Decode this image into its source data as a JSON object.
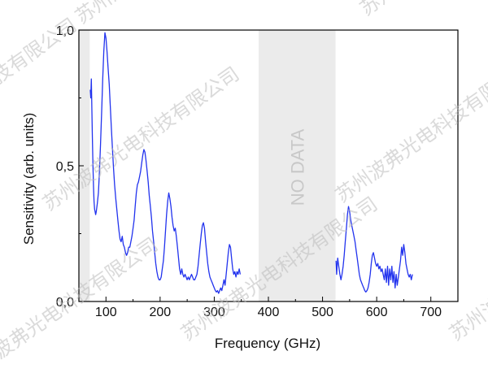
{
  "chart_data": {
    "type": "line",
    "title": "",
    "xlabel": "Frequency (GHz)",
    "ylabel": "Sensitivity (arb. units)",
    "xlim": [
      50,
      750
    ],
    "ylim": [
      0,
      1
    ],
    "x_ticks": [
      100,
      200,
      300,
      400,
      500,
      600,
      700
    ],
    "x_tick_labels": [
      "100",
      "200",
      "300",
      "400",
      "500",
      "600",
      "700"
    ],
    "y_ticks": [
      0,
      0.5,
      1.0
    ],
    "y_tick_labels": [
      "0,0",
      "0,5",
      "1,0"
    ],
    "grid": false,
    "line_color": "#2233ee",
    "no_data_label": "NO DATA",
    "shaded_regions": [
      {
        "x0": 50,
        "x1": 70,
        "label": ""
      },
      {
        "x0": 382,
        "x1": 524,
        "label": "NO DATA"
      }
    ],
    "series": [
      {
        "segments": [
          [
            [
              71,
              0.78
            ],
            [
              72,
              0.75
            ],
            [
              73,
              0.82
            ],
            [
              74,
              0.7
            ],
            [
              75,
              0.6
            ],
            [
              76,
              0.5
            ],
            [
              77,
              0.42
            ],
            [
              78,
              0.37
            ],
            [
              79,
              0.34
            ],
            [
              80,
              0.33
            ],
            [
              81,
              0.32
            ],
            [
              82,
              0.33
            ],
            [
              84,
              0.36
            ],
            [
              86,
              0.4
            ],
            [
              88,
              0.48
            ],
            [
              90,
              0.58
            ],
            [
              92,
              0.7
            ],
            [
              94,
              0.82
            ],
            [
              96,
              0.92
            ],
            [
              98,
              0.99
            ],
            [
              100,
              0.97
            ],
            [
              102,
              0.92
            ],
            [
              104,
              0.86
            ],
            [
              106,
              0.8
            ],
            [
              108,
              0.72
            ],
            [
              110,
              0.64
            ],
            [
              112,
              0.56
            ],
            [
              114,
              0.49
            ],
            [
              116,
              0.43
            ],
            [
              118,
              0.38
            ],
            [
              120,
              0.34
            ],
            [
              122,
              0.3
            ],
            [
              124,
              0.26
            ],
            [
              126,
              0.23
            ],
            [
              128,
              0.22
            ],
            [
              130,
              0.24
            ],
            [
              132,
              0.21
            ],
            [
              134,
              0.2
            ],
            [
              136,
              0.18
            ],
            [
              138,
              0.17
            ],
            [
              140,
              0.18
            ],
            [
              142,
              0.2
            ],
            [
              144,
              0.2
            ],
            [
              146,
              0.22
            ],
            [
              148,
              0.24
            ],
            [
              150,
              0.27
            ],
            [
              152,
              0.3
            ],
            [
              154,
              0.35
            ],
            [
              156,
              0.4
            ],
            [
              158,
              0.43
            ],
            [
              160,
              0.44
            ],
            [
              162,
              0.46
            ],
            [
              164,
              0.48
            ],
            [
              166,
              0.51
            ],
            [
              168,
              0.54
            ],
            [
              170,
              0.56
            ],
            [
              172,
              0.55
            ],
            [
              174,
              0.52
            ],
            [
              176,
              0.48
            ],
            [
              178,
              0.44
            ],
            [
              180,
              0.39
            ],
            [
              182,
              0.35
            ],
            [
              184,
              0.31
            ],
            [
              186,
              0.26
            ],
            [
              188,
              0.22
            ],
            [
              190,
              0.18
            ],
            [
              192,
              0.14
            ],
            [
              194,
              0.11
            ],
            [
              196,
              0.09
            ],
            [
              198,
              0.08
            ],
            [
              200,
              0.08
            ],
            [
              202,
              0.09
            ],
            [
              204,
              0.12
            ],
            [
              206,
              0.15
            ],
            [
              208,
              0.2
            ],
            [
              210,
              0.26
            ],
            [
              212,
              0.32
            ],
            [
              214,
              0.37
            ],
            [
              216,
              0.4
            ],
            [
              218,
              0.38
            ],
            [
              220,
              0.35
            ],
            [
              222,
              0.31
            ],
            [
              224,
              0.28
            ],
            [
              226,
              0.26
            ],
            [
              228,
              0.27
            ],
            [
              230,
              0.24
            ],
            [
              232,
              0.2
            ],
            [
              234,
              0.16
            ],
            [
              236,
              0.12
            ],
            [
              238,
              0.1
            ],
            [
              240,
              0.12
            ],
            [
              242,
              0.1
            ],
            [
              244,
              0.09
            ],
            [
              246,
              0.1
            ],
            [
              248,
              0.09
            ],
            [
              250,
              0.08
            ],
            [
              252,
              0.09
            ],
            [
              254,
              0.08
            ],
            [
              256,
              0.09
            ],
            [
              258,
              0.1
            ],
            [
              260,
              0.09
            ],
            [
              262,
              0.08
            ],
            [
              264,
              0.08
            ],
            [
              266,
              0.09
            ],
            [
              268,
              0.1
            ],
            [
              270,
              0.13
            ],
            [
              272,
              0.17
            ],
            [
              274,
              0.21
            ],
            [
              276,
              0.25
            ],
            [
              278,
              0.28
            ],
            [
              280,
              0.29
            ],
            [
              282,
              0.27
            ],
            [
              284,
              0.22
            ],
            [
              286,
              0.18
            ],
            [
              288,
              0.14
            ],
            [
              290,
              0.11
            ],
            [
              292,
              0.09
            ],
            [
              294,
              0.08
            ],
            [
              296,
              0.07
            ],
            [
              298,
              0.06
            ],
            [
              300,
              0.05
            ],
            [
              302,
              0.04
            ],
            [
              304,
              0.035
            ],
            [
              306,
              0.04
            ],
            [
              308,
              0.03
            ],
            [
              310,
              0.04
            ],
            [
              312,
              0.05
            ],
            [
              314,
              0.04
            ],
            [
              316,
              0.06
            ],
            [
              318,
              0.08
            ],
            [
              320,
              0.06
            ],
            [
              322,
              0.1
            ],
            [
              324,
              0.14
            ],
            [
              326,
              0.18
            ],
            [
              328,
              0.21
            ],
            [
              330,
              0.2
            ],
            [
              332,
              0.16
            ],
            [
              334,
              0.12
            ],
            [
              336,
              0.1
            ],
            [
              338,
              0.11
            ],
            [
              340,
              0.09
            ],
            [
              342,
              0.11
            ],
            [
              344,
              0.1
            ],
            [
              346,
              0.12
            ],
            [
              348,
              0.1
            ]
          ],
          [
            [
              525,
              0.15
            ],
            [
              526,
              0.1
            ],
            [
              527,
              0.13
            ],
            [
              528,
              0.16
            ],
            [
              530,
              0.13
            ],
            [
              532,
              0.1
            ],
            [
              534,
              0.08
            ],
            [
              536,
              0.1
            ],
            [
              538,
              0.13
            ],
            [
              540,
              0.17
            ],
            [
              542,
              0.22
            ],
            [
              544,
              0.27
            ],
            [
              546,
              0.32
            ],
            [
              548,
              0.35
            ],
            [
              550,
              0.33
            ],
            [
              552,
              0.3
            ],
            [
              554,
              0.28
            ],
            [
              556,
              0.26
            ],
            [
              558,
              0.24
            ],
            [
              560,
              0.22
            ],
            [
              562,
              0.19
            ],
            [
              564,
              0.16
            ],
            [
              566,
              0.13
            ],
            [
              568,
              0.1
            ],
            [
              570,
              0.08
            ],
            [
              572,
              0.07
            ],
            [
              574,
              0.06
            ],
            [
              576,
              0.05
            ],
            [
              578,
              0.04
            ],
            [
              580,
              0.035
            ],
            [
              582,
              0.04
            ],
            [
              584,
              0.05
            ],
            [
              586,
              0.07
            ],
            [
              588,
              0.1
            ],
            [
              590,
              0.14
            ],
            [
              592,
              0.17
            ],
            [
              594,
              0.18
            ],
            [
              596,
              0.16
            ],
            [
              598,
              0.14
            ],
            [
              600,
              0.13
            ],
            [
              602,
              0.14
            ],
            [
              604,
              0.12
            ],
            [
              606,
              0.13
            ],
            [
              608,
              0.11
            ],
            [
              610,
              0.12
            ],
            [
              612,
              0.1
            ],
            [
              614,
              0.08
            ],
            [
              616,
              0.12
            ],
            [
              618,
              0.07
            ],
            [
              620,
              0.13
            ],
            [
              622,
              0.06
            ],
            [
              624,
              0.12
            ],
            [
              626,
              0.08
            ],
            [
              628,
              0.13
            ],
            [
              630,
              0.07
            ],
            [
              632,
              0.11
            ],
            [
              634,
              0.05
            ],
            [
              636,
              0.1
            ],
            [
              638,
              0.06
            ],
            [
              640,
              0.09
            ],
            [
              642,
              0.12
            ],
            [
              644,
              0.15
            ],
            [
              646,
              0.2
            ],
            [
              648,
              0.17
            ],
            [
              650,
              0.21
            ],
            [
              652,
              0.18
            ],
            [
              654,
              0.14
            ],
            [
              656,
              0.12
            ],
            [
              658,
              0.1
            ],
            [
              660,
              0.09
            ],
            [
              662,
              0.1
            ],
            [
              664,
              0.08
            ],
            [
              666,
              0.1
            ]
          ]
        ]
      }
    ]
  },
  "watermark": {
    "text": "苏州波弗光电科技有限公司",
    "color": "#bbbbbb"
  }
}
